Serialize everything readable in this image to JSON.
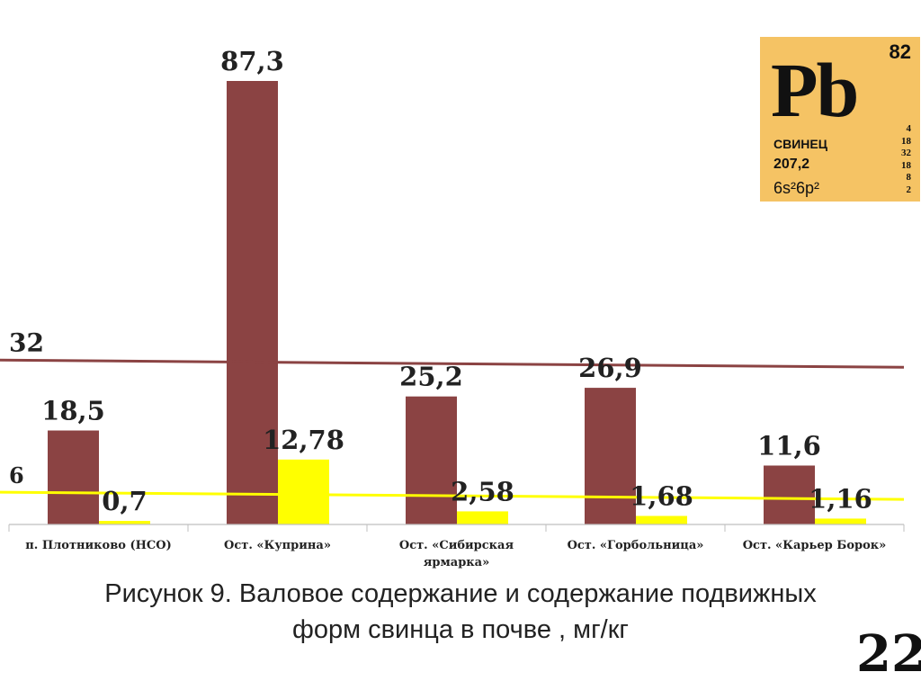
{
  "chart_data": {
    "type": "bar",
    "categories": [
      "п. Плотниково (НСО)",
      "Ост. «Куприна»",
      "Ост. «Сибирская ярмарка»",
      "Ост. «Горбольница»",
      "Ост. «Карьер Борок»"
    ],
    "category_lines": [
      [
        "п. Плотниково (НСО)"
      ],
      [
        "Ост. «Куприна»"
      ],
      [
        "Ост. «Сибирская",
        "ярмарка»"
      ],
      [
        "Ост. «Горбольница»"
      ],
      [
        "Ост. «Карьер Борок»"
      ]
    ],
    "series": [
      {
        "values": [
          18.5,
          87.3,
          25.2,
          26.9,
          11.6
        ],
        "labels": [
          "18,5",
          "87,3",
          "25,2",
          "26,9",
          "11,6"
        ],
        "color": "#8b4343"
      },
      {
        "values": [
          0.7,
          12.78,
          2.58,
          1.68,
          1.16
        ],
        "labels": [
          "0,7",
          "12,78",
          "2,58",
          "1,68",
          "1,16"
        ],
        "color": "#ffff00"
      }
    ],
    "reference_lines": [
      {
        "value": 32,
        "label": "32",
        "color": "#8b4343"
      },
      {
        "value": 6,
        "label": "6",
        "color": "#ffff00"
      }
    ],
    "ylim": [
      0,
      90
    ],
    "grid": false,
    "legend": "none"
  },
  "element_tile": {
    "symbol": "Pb",
    "number": "82",
    "name": "СВИНЕЦ",
    "mass": "207,2",
    "configuration": "6s²6p²",
    "shells": [
      "4",
      "18",
      "32",
      "18",
      "8",
      "2"
    ]
  },
  "caption": {
    "line1": "Рисунок 9. Валовое содержание и содержание подвижных",
    "line2": "форм свинца в почве , мг/кг"
  },
  "slide_number": "22"
}
